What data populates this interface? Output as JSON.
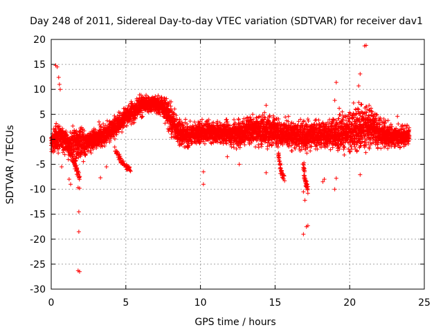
{
  "chart_data": {
    "type": "scatter",
    "title": "Day 248 of 2011, Sidereal Day-to-day VTEC variation (SDTVAR) for receiver dav1",
    "xlabel": "GPS time / hours",
    "ylabel": "SDTVAR / TECUs",
    "xlim": [
      0,
      25
    ],
    "ylim": [
      -30,
      20
    ],
    "xticks": [
      "0",
      "5",
      "10",
      "15",
      "20",
      "25"
    ],
    "yticks": [
      "20",
      "15",
      "10",
      "5",
      "0",
      "-5",
      "-10",
      "-15",
      "-20",
      "-25",
      "-30"
    ],
    "grid": true,
    "marker": "+",
    "series": [
      {
        "name": "dav1",
        "color": "#ff0000",
        "band": {
          "x": [
            0.0,
            0.5,
            1.0,
            1.5,
            2.0,
            2.5,
            3.0,
            3.5,
            4.0,
            4.5,
            5.0,
            5.5,
            6.0,
            6.5,
            7.0,
            7.5,
            8.0,
            8.5,
            9.0,
            9.5,
            10.0,
            11.0,
            12.0,
            13.0,
            14.0,
            15.0,
            16.0,
            17.0,
            18.0,
            19.0,
            20.0,
            20.5,
            21.0,
            22.0,
            23.0,
            24.0
          ],
          "mid": [
            -0.5,
            0.5,
            -0.5,
            -2.0,
            -1.0,
            -0.5,
            0.0,
            0.5,
            2.0,
            3.0,
            4.5,
            5.5,
            6.5,
            7.0,
            7.0,
            6.5,
            4.0,
            1.5,
            0.5,
            1.0,
            1.5,
            1.5,
            1.0,
            1.5,
            2.0,
            1.5,
            1.0,
            0.5,
            1.0,
            1.0,
            1.5,
            2.0,
            2.5,
            1.5,
            0.5,
            1.0
          ],
          "half": [
            2.5,
            3.0,
            2.5,
            4.0,
            3.0,
            2.0,
            2.0,
            2.0,
            2.0,
            2.0,
            2.0,
            2.0,
            2.0,
            1.5,
            1.5,
            2.0,
            3.0,
            2.5,
            2.5,
            2.0,
            2.0,
            2.0,
            2.5,
            2.5,
            3.0,
            3.0,
            2.5,
            3.0,
            2.5,
            3.0,
            4.0,
            4.5,
            4.0,
            3.0,
            2.0,
            2.0
          ]
        },
        "dips": [
          {
            "x": [
              4.3,
              4.6,
              5.0,
              5.3
            ],
            "y": [
              -2.0,
              -4.0,
              -5.5,
              -6.0
            ]
          },
          {
            "x": [
              15.2,
              15.4,
              15.6
            ],
            "y": [
              -3.0,
              -6.5,
              -8.0
            ]
          },
          {
            "x": [
              16.9,
              17.0,
              17.2
            ],
            "y": [
              -5.0,
              -8.0,
              -10.0
            ]
          },
          {
            "x": [
              1.5,
              1.7,
              1.9
            ],
            "y": [
              -4.0,
              -6.0,
              -8.0
            ]
          }
        ],
        "outliers": [
          {
            "x": 0.3,
            "y": 14.8
          },
          {
            "x": 0.4,
            "y": 14.5
          },
          {
            "x": 0.5,
            "y": 12.4
          },
          {
            "x": 0.55,
            "y": 11.0
          },
          {
            "x": 0.6,
            "y": 10.0
          },
          {
            "x": 0.7,
            "y": -5.5
          },
          {
            "x": 1.2,
            "y": -8.0
          },
          {
            "x": 1.3,
            "y": -9.0
          },
          {
            "x": 1.8,
            "y": -9.7
          },
          {
            "x": 1.9,
            "y": -9.8
          },
          {
            "x": 1.85,
            "y": -14.5
          },
          {
            "x": 1.85,
            "y": -18.5
          },
          {
            "x": 1.8,
            "y": -26.3
          },
          {
            "x": 1.9,
            "y": -26.5
          },
          {
            "x": 3.2,
            "y": 3.5
          },
          {
            "x": 3.3,
            "y": -7.7
          },
          {
            "x": 3.7,
            "y": -5.5
          },
          {
            "x": 10.2,
            "y": -6.5
          },
          {
            "x": 10.2,
            "y": -9.0
          },
          {
            "x": 12.6,
            "y": -5.0
          },
          {
            "x": 14.4,
            "y": 6.8
          },
          {
            "x": 14.4,
            "y": -6.7
          },
          {
            "x": 15.9,
            "y": 4.6
          },
          {
            "x": 16.9,
            "y": -10.5
          },
          {
            "x": 17.0,
            "y": -12.2
          },
          {
            "x": 16.9,
            "y": -19.0
          },
          {
            "x": 17.2,
            "y": -17.3
          },
          {
            "x": 17.1,
            "y": -17.5
          },
          {
            "x": 17.2,
            "y": -10.8
          },
          {
            "x": 17.5,
            "y": 1.8
          },
          {
            "x": 18.2,
            "y": -8.5
          },
          {
            "x": 18.3,
            "y": -8.0
          },
          {
            "x": 19.1,
            "y": 11.4
          },
          {
            "x": 19.0,
            "y": 7.8
          },
          {
            "x": 19.3,
            "y": 6.2
          },
          {
            "x": 19.0,
            "y": -10.0
          },
          {
            "x": 19.1,
            "y": -7.8
          },
          {
            "x": 19.5,
            "y": 5.5
          },
          {
            "x": 20.6,
            "y": 10.7
          },
          {
            "x": 20.7,
            "y": 13.1
          },
          {
            "x": 20.8,
            "y": 7.0
          },
          {
            "x": 21.0,
            "y": 18.7
          },
          {
            "x": 21.1,
            "y": 18.8
          },
          {
            "x": 20.7,
            "y": -7.1
          },
          {
            "x": 21.3,
            "y": 6.8
          },
          {
            "x": 18.1,
            "y": 3.0
          },
          {
            "x": 23.2,
            "y": 4.6
          },
          {
            "x": 11.8,
            "y": -3.5
          },
          {
            "x": 9.0,
            "y": 4.0
          },
          {
            "x": 13.5,
            "y": 5.0
          }
        ]
      }
    ]
  }
}
